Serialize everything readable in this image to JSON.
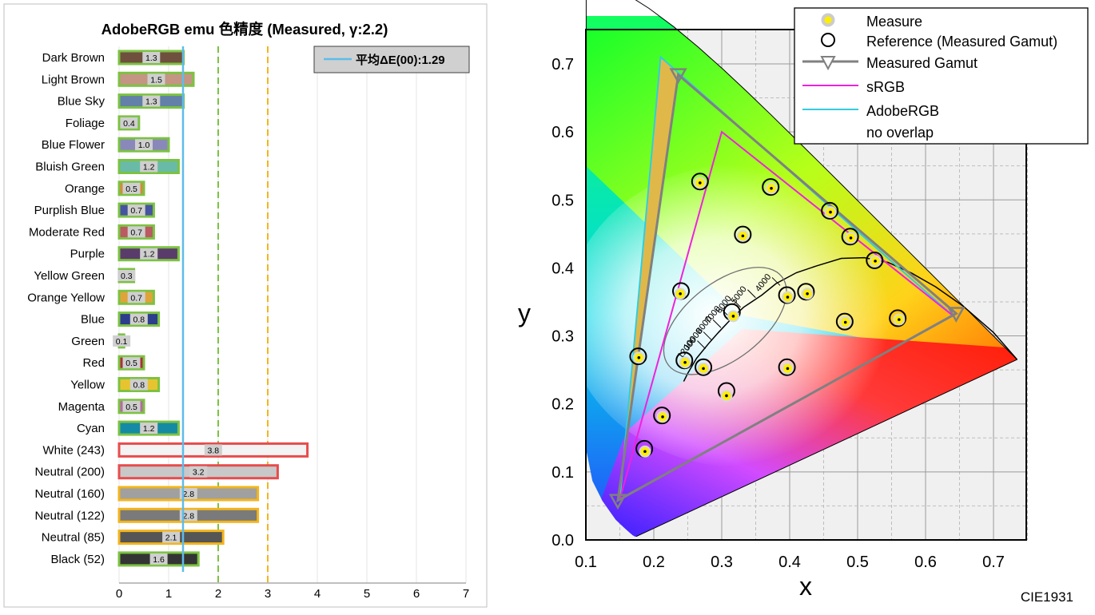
{
  "chart_data": [
    {
      "type": "bar",
      "title": "AdobeRGB emu 色精度 (Measured, γ:2.2)",
      "xlabel": "",
      "ylabel": "",
      "xlim": [
        0,
        7
      ],
      "x_ticks": [
        "0",
        "1",
        "2",
        "3",
        "4",
        "5",
        "6",
        "7"
      ],
      "reference_lines": [
        2,
        3
      ],
      "average_label": "平均ΔE(00):1.29",
      "average_value": 1.29,
      "categories": [
        "Dark Brown",
        "Light Brown",
        "Blue Sky",
        "Foliage",
        "Blue Flower",
        "Bluish Green",
        "Orange",
        "Purplish Blue",
        "Moderate Red",
        "Purple",
        "Yellow Green",
        "Orange Yellow",
        "Blue",
        "Green",
        "Red",
        "Yellow",
        "Magenta",
        "Cyan",
        "White (243)",
        "Neutral (200)",
        "Neutral (160)",
        "Neutral (122)",
        "Neutral (85)",
        "Black (52)"
      ],
      "values": [
        1.3,
        1.5,
        1.3,
        0.4,
        1.0,
        1.2,
        0.5,
        0.7,
        0.7,
        1.2,
        0.3,
        0.7,
        0.8,
        0.1,
        0.5,
        0.8,
        0.5,
        1.2,
        3.8,
        3.2,
        2.8,
        2.8,
        2.1,
        1.6
      ],
      "value_labels": [
        "1.3",
        "1.5",
        "1.3",
        "0.4",
        "1.0",
        "1.2",
        "0.5",
        "0.7",
        "0.7",
        "1.2",
        "0.3",
        "0.7",
        "0.8",
        "0.1",
        "0.5",
        "0.8",
        "0.5",
        "1.2",
        "3.8",
        "3.2",
        "2.8",
        "2.8",
        "2.1",
        "1.6"
      ],
      "bar_colors": [
        "#6f4f3e",
        "#c49582",
        "#6280a8",
        "#586b3e",
        "#8a88bb",
        "#69bba7",
        "#d7883b",
        "#46549f",
        "#bb5a63",
        "#5a3c6b",
        "#9ebd4b",
        "#dea43a",
        "#2c3e8c",
        "#3f8a48",
        "#a83238",
        "#e7c42f",
        "#b56aa5",
        "#148aa5",
        "#f3f3f3",
        "#c8c8c8",
        "#a0a0a0",
        "#7a7a7a",
        "#555555",
        "#343434"
      ],
      "threshold_colors": {
        "good": "#7cc242",
        "fair": "#f2b51d",
        "poor": "#e74c4c"
      }
    },
    {
      "type": "scatter",
      "title": "",
      "xlabel": "x",
      "ylabel": "y",
      "xlim": [
        0.1,
        0.75
      ],
      "ylim": [
        0.0,
        0.75
      ],
      "x_ticks": [
        "0.1",
        "0.2",
        "0.3",
        "0.4",
        "0.5",
        "0.6",
        "0.7"
      ],
      "y_ticks": [
        "0.0",
        "0.1",
        "0.2",
        "0.3",
        "0.4",
        "0.5",
        "0.6",
        "0.7"
      ],
      "corner_label": "CIE1931",
      "legend": {
        "position": "top-right",
        "entries": [
          "Measure",
          "Reference (Measured Gamut)",
          "Measured Gamut",
          "sRGB",
          "AdobeRGB",
          "no overlap"
        ]
      },
      "cct_labels": [
        "4000",
        "5000",
        "6000",
        "7000",
        "8000",
        "10000",
        "12000"
      ],
      "series": [
        {
          "name": "Measure",
          "color": "#ffee00",
          "points": [
            [
              0.239,
              0.362
            ],
            [
              0.268,
              0.525
            ],
            [
              0.307,
              0.212
            ],
            [
              0.317,
              0.329
            ],
            [
              0.331,
              0.447
            ],
            [
              0.373,
              0.517
            ],
            [
              0.397,
              0.357
            ],
            [
              0.426,
              0.362
            ],
            [
              0.46,
              0.482
            ],
            [
              0.49,
              0.444
            ],
            [
              0.526,
              0.41
            ],
            [
              0.561,
              0.324
            ],
            [
              0.482,
              0.32
            ],
            [
              0.397,
              0.252
            ],
            [
              0.273,
              0.252
            ],
            [
              0.246,
              0.261
            ],
            [
              0.213,
              0.181
            ],
            [
              0.187,
              0.13
            ],
            [
              0.178,
              0.268
            ]
          ]
        },
        {
          "name": "Reference (Measured Gamut)",
          "color": "#000000",
          "points": [
            [
              0.24,
              0.366
            ],
            [
              0.268,
              0.527
            ],
            [
              0.307,
              0.219
            ],
            [
              0.315,
              0.335
            ],
            [
              0.331,
              0.449
            ],
            [
              0.372,
              0.519
            ],
            [
              0.396,
              0.36
            ],
            [
              0.424,
              0.365
            ],
            [
              0.459,
              0.484
            ],
            [
              0.489,
              0.446
            ],
            [
              0.525,
              0.411
            ],
            [
              0.559,
              0.326
            ],
            [
              0.481,
              0.321
            ],
            [
              0.396,
              0.254
            ],
            [
              0.273,
              0.254
            ],
            [
              0.245,
              0.264
            ],
            [
              0.212,
              0.183
            ],
            [
              0.186,
              0.134
            ],
            [
              0.177,
              0.27
            ]
          ]
        },
        {
          "name": "Measured Gamut",
          "color": "#808080",
          "points": [
            [
              0.645,
              0.333
            ],
            [
              0.236,
              0.684
            ],
            [
              0.147,
              0.058
            ]
          ]
        },
        {
          "name": "sRGB",
          "color": "#ee22dd",
          "points": [
            [
              0.64,
              0.33
            ],
            [
              0.3,
              0.6
            ],
            [
              0.15,
              0.06
            ]
          ]
        },
        {
          "name": "AdobeRGB",
          "color": "#33ccdd",
          "points": [
            [
              0.64,
              0.33
            ],
            [
              0.21,
              0.71
            ],
            [
              0.15,
              0.06
            ]
          ]
        }
      ]
    }
  ]
}
